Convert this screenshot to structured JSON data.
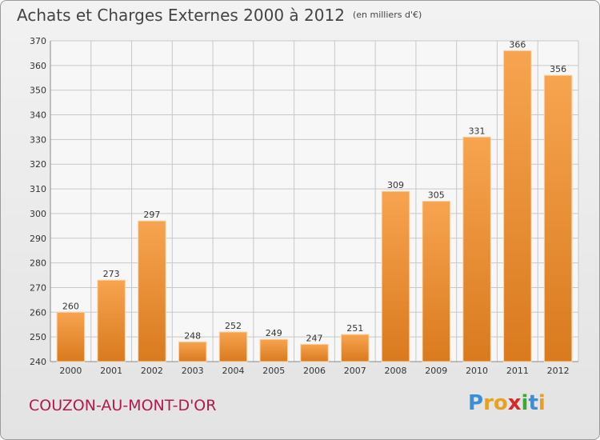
{
  "title": "Achats et Charges Externes 2000 à 2012",
  "subtitle": "(en milliers d'€)",
  "town": "COUZON-AU-MONT-D'OR",
  "logo": {
    "text": "Proxiti",
    "letters": [
      {
        "ch": "P",
        "color": "#3b8fd6"
      },
      {
        "ch": "r",
        "color": "#e8a020"
      },
      {
        "ch": "o",
        "color": "#e8a020"
      },
      {
        "ch": "x",
        "color": "#d62a2a"
      },
      {
        "ch": "i",
        "color": "#3aaa35"
      },
      {
        "ch": "t",
        "color": "#3b8fd6"
      },
      {
        "ch": "i",
        "color": "#e8a020"
      }
    ]
  },
  "colors": {
    "bar_light": "#f7a450",
    "bar_dark": "#d97a1e",
    "grid": "#c8c8c8",
    "text": "#333333"
  },
  "chart_data": {
    "type": "bar",
    "categories": [
      "2000",
      "2001",
      "2002",
      "2003",
      "2004",
      "2005",
      "2006",
      "2007",
      "2008",
      "2009",
      "2010",
      "2011",
      "2012"
    ],
    "values": [
      260,
      273,
      297,
      248,
      252,
      249,
      247,
      251,
      309,
      305,
      331,
      366,
      356
    ],
    "ylim": [
      240,
      370
    ],
    "yticks": [
      240,
      250,
      260,
      270,
      280,
      290,
      300,
      310,
      320,
      330,
      340,
      350,
      360,
      370
    ],
    "grid": true,
    "data_labels": true
  }
}
